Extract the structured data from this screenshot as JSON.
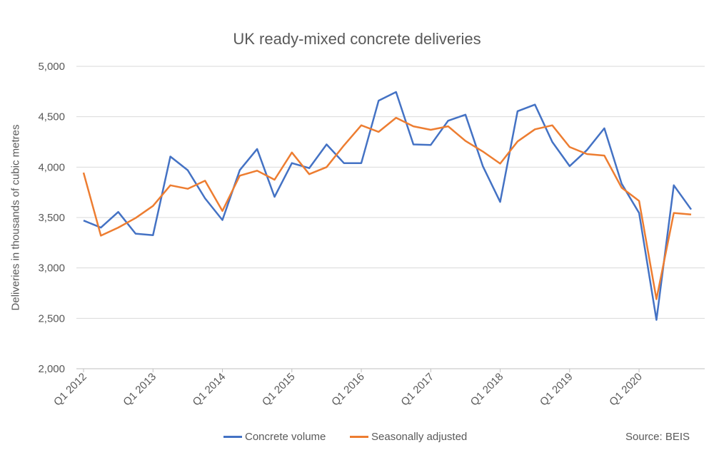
{
  "chart_data": {
    "type": "line",
    "title": "UK ready-mixed concrete deliveries",
    "ylabel": "Deliveries in thousands of cubic metres",
    "xlabel": "",
    "ylim": [
      2000,
      5000
    ],
    "yticks": [
      2000,
      2500,
      3000,
      3500,
      4000,
      4500,
      5000
    ],
    "ytick_labels": [
      "2,000",
      "2,500",
      "3,000",
      "3,500",
      "4,000",
      "4,500",
      "5,000"
    ],
    "grid": "horizontal",
    "legend": "bottom",
    "x": [
      "Q1 2012",
      "Q2 2012",
      "Q3 2012",
      "Q4 2012",
      "Q1 2013",
      "Q2 2013",
      "Q3 2013",
      "Q4 2013",
      "Q1 2014",
      "Q2 2014",
      "Q3 2014",
      "Q4 2014",
      "Q1 2015",
      "Q2 2015",
      "Q3 2015",
      "Q4 2015",
      "Q1 2016",
      "Q2 2016",
      "Q3 2016",
      "Q4 2016",
      "Q1 2017",
      "Q2 2017",
      "Q3 2017",
      "Q4 2017",
      "Q1 2018",
      "Q2 2018",
      "Q3 2018",
      "Q4 2018",
      "Q1 2019",
      "Q2 2019",
      "Q3 2019",
      "Q4 2019",
      "Q1 2020",
      "Q2 2020",
      "Q3 2020",
      "Q4 2020"
    ],
    "xtick_labels": [
      "Q1 2012",
      "Q1 2013",
      "Q1 2014",
      "Q1 2015",
      "Q1 2016",
      "Q1 2017",
      "Q1 2018",
      "Q1 2019",
      "Q1 2020"
    ],
    "series": [
      {
        "name": "Concrete volume",
        "color": "#4472C4",
        "values": [
          3470,
          3400,
          3555,
          3340,
          3325,
          4105,
          3970,
          3690,
          3475,
          3970,
          4180,
          3705,
          4040,
          3990,
          4225,
          4040,
          4040,
          4660,
          4745,
          4225,
          4220,
          4460,
          4520,
          4010,
          3655,
          4555,
          4620,
          4250,
          4010,
          4170,
          4385,
          3835,
          3545,
          2485,
          3820,
          3580
        ]
      },
      {
        "name": "Seasonally adjusted",
        "color": "#ED7D31",
        "values": [
          3945,
          3320,
          3400,
          3495,
          3615,
          3820,
          3785,
          3865,
          3565,
          3915,
          3965,
          3875,
          4145,
          3930,
          4000,
          4215,
          4415,
          4350,
          4490,
          4405,
          4370,
          4405,
          4260,
          4155,
          4035,
          4255,
          4375,
          4415,
          4200,
          4130,
          4115,
          3795,
          3665,
          2690,
          3545,
          3530
        ]
      }
    ],
    "source": "Source: BEIS"
  }
}
